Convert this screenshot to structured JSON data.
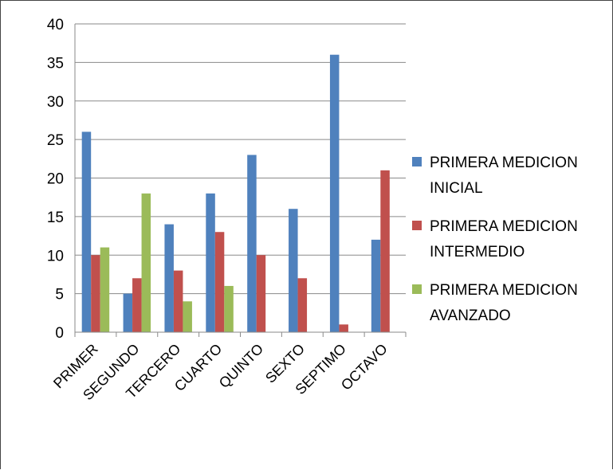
{
  "chart_data": {
    "type": "bar",
    "title": "",
    "xlabel": "",
    "ylabel": "",
    "categories": [
      "PRIMER",
      "SEGUNDO",
      "TERCERO",
      "CUARTO",
      "QUINTO",
      "SEXTO",
      "SEPTIMO",
      "OCTAVO"
    ],
    "series": [
      {
        "name": "PRIMERA MEDICION INICIAL",
        "color": "#4F81BD",
        "values": [
          26,
          5,
          14,
          18,
          23,
          16,
          36,
          12
        ]
      },
      {
        "name": "PRIMERA MEDICION INTERMEDIO",
        "color": "#C0504D",
        "values": [
          10,
          7,
          8,
          13,
          10,
          7,
          1,
          21
        ]
      },
      {
        "name": "PRIMERA MEDICION AVANZADO",
        "color": "#9BBB59",
        "values": [
          11,
          18,
          4,
          6,
          0,
          0,
          0,
          0
        ]
      }
    ],
    "ylim": [
      0,
      40
    ],
    "yticks": [
      "0",
      "5",
      "10",
      "15",
      "20",
      "25",
      "30",
      "35",
      "40"
    ],
    "grid": true,
    "legend_position": "right",
    "legend_lines": [
      [
        "PRIMERA MEDICION",
        "INICIAL"
      ],
      [
        "PRIMERA MEDICION",
        "INTERMEDIO"
      ],
      [
        "PRIMERA MEDICION",
        "AVANZADO"
      ]
    ]
  }
}
